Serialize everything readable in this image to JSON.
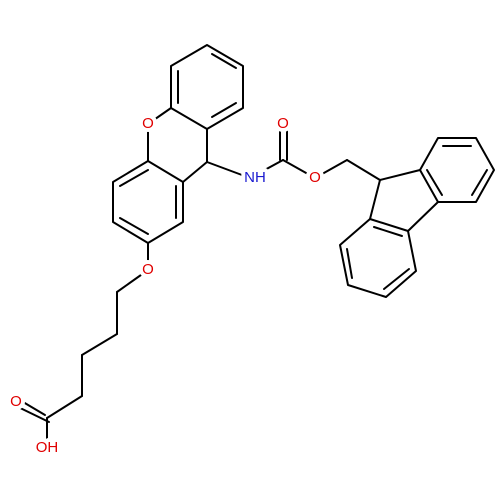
{
  "atoms": {
    "xanthene_oxygen": "O",
    "amine": "NH",
    "carbonyl_oxygen": "O",
    "ester_oxygen": "O",
    "ether_oxygen": "O",
    "acid_carbonyl_oxygen": "O",
    "acid_hydroxyl": "OH"
  }
}
